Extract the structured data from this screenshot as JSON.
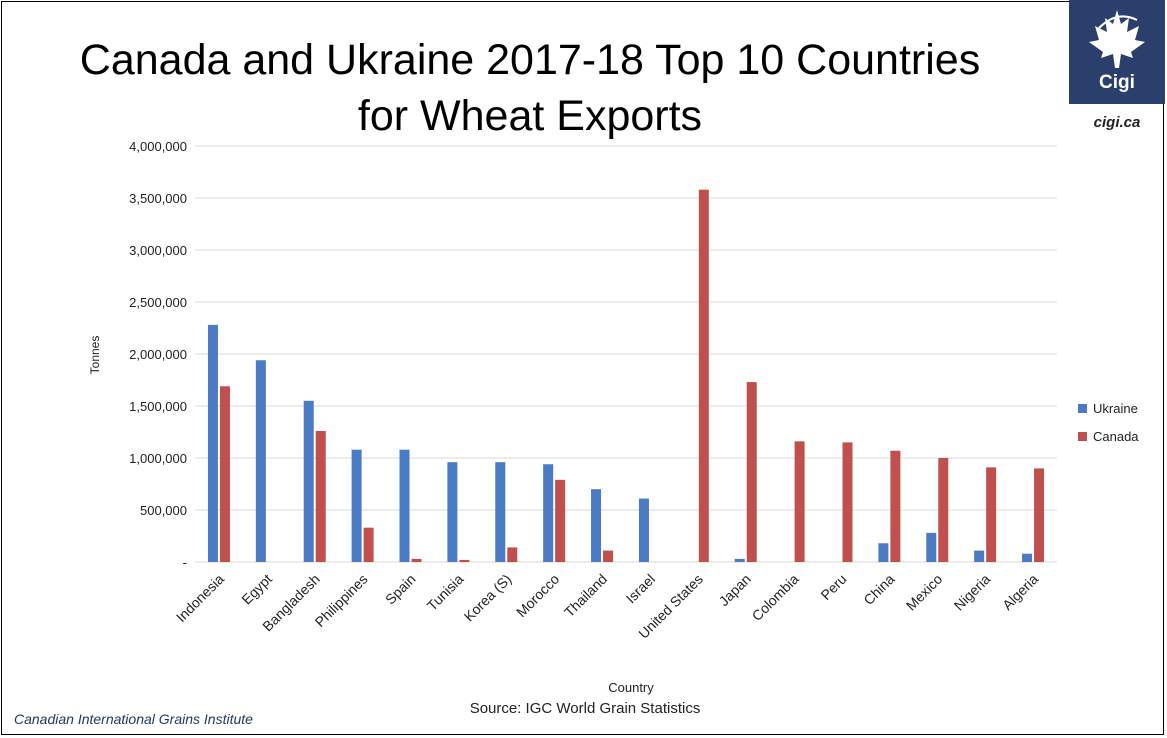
{
  "slide": {
    "title_line1": "Canada and Ukraine 2017-18 Top 10 Countries",
    "title_line2": "for Wheat Exports",
    "logo_text": "Cigi",
    "logo_url": "cigi.ca",
    "footer_org": "Canadian International Grains Institute",
    "source": "Source: IGC World Grain Statistics"
  },
  "colors": {
    "ukraine": "#4a7bc4",
    "canada": "#c0504d",
    "grid": "#d9d9d9",
    "logo_bg": "#2a3f6b"
  },
  "chart_data": {
    "type": "bar",
    "categories": [
      "Indonesia",
      "Egypt",
      "Bangladesh",
      "Philippines",
      "Spain",
      "Tunisia",
      "Korea (S)",
      "Morocco",
      "Thailand",
      "Israel",
      "United States",
      "Japan",
      "Colombia",
      "Peru",
      "China",
      "Mexico",
      "Nigeria",
      "Algeria"
    ],
    "series": [
      {
        "name": "Ukraine",
        "values": [
          2280000,
          1940000,
          1550000,
          1080000,
          1080000,
          960000,
          960000,
          940000,
          700000,
          610000,
          0,
          30000,
          0,
          0,
          180000,
          280000,
          110000,
          80000
        ]
      },
      {
        "name": "Canada",
        "values": [
          1690000,
          0,
          1260000,
          330000,
          30000,
          20000,
          140000,
          790000,
          110000,
          0,
          3580000,
          1730000,
          1160000,
          1150000,
          1070000,
          1000000,
          910000,
          900000
        ]
      }
    ],
    "xlabel": "Country",
    "ylabel": "Tonnes",
    "ylim": [
      0,
      4000000
    ],
    "yticks": [
      "-",
      "500,000",
      "1,000,000",
      "1,500,000",
      "2,000,000",
      "2,500,000",
      "3,000,000",
      "3,500,000",
      "4,000,000"
    ],
    "grid": true,
    "legend_position": "right"
  }
}
